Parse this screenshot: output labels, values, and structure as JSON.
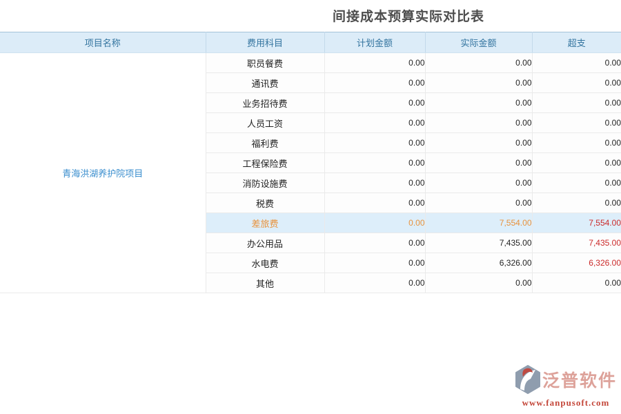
{
  "title": "间接成本预算实际对比表",
  "table": {
    "headers": [
      "项目名称",
      "费用科目",
      "计划金额",
      "实际金额",
      "超支"
    ],
    "project_name": "青海洪湖养护院项目",
    "rows": [
      {
        "subject": "职员餐费",
        "planned": "0.00",
        "actual": "0.00",
        "over": "0.00",
        "highlight": false,
        "over_red": false
      },
      {
        "subject": "通讯费",
        "planned": "0.00",
        "actual": "0.00",
        "over": "0.00",
        "highlight": false,
        "over_red": false
      },
      {
        "subject": "业务招待费",
        "planned": "0.00",
        "actual": "0.00",
        "over": "0.00",
        "highlight": false,
        "over_red": false
      },
      {
        "subject": "人员工资",
        "planned": "0.00",
        "actual": "0.00",
        "over": "0.00",
        "highlight": false,
        "over_red": false
      },
      {
        "subject": "福利费",
        "planned": "0.00",
        "actual": "0.00",
        "over": "0.00",
        "highlight": false,
        "over_red": false
      },
      {
        "subject": "工程保险费",
        "planned": "0.00",
        "actual": "0.00",
        "over": "0.00",
        "highlight": false,
        "over_red": false
      },
      {
        "subject": "消防设施费",
        "planned": "0.00",
        "actual": "0.00",
        "over": "0.00",
        "highlight": false,
        "over_red": false
      },
      {
        "subject": "税费",
        "planned": "0.00",
        "actual": "0.00",
        "over": "0.00",
        "highlight": false,
        "over_red": false
      },
      {
        "subject": "差旅费",
        "planned": "0.00",
        "actual": "7,554.00",
        "over": "7,554.00",
        "highlight": true,
        "over_red": true
      },
      {
        "subject": "办公用品",
        "planned": "0.00",
        "actual": "7,435.00",
        "over": "7,435.00",
        "highlight": false,
        "over_red": true
      },
      {
        "subject": "水电费",
        "planned": "0.00",
        "actual": "6,326.00",
        "over": "6,326.00",
        "highlight": false,
        "over_red": true
      },
      {
        "subject": "其他",
        "planned": "0.00",
        "actual": "0.00",
        "over": "0.00",
        "highlight": false,
        "over_red": false
      }
    ]
  },
  "watermark": {
    "brand": "泛普软件",
    "url": "www.fanpusoft.com"
  },
  "colors": {
    "header_bg": "#dcecf8",
    "header_text": "#33749f",
    "project_link": "#3a8ece",
    "highlight_row_bg": "#ddeefa",
    "highlight_text_orange": "#e8923c",
    "overspend_red": "#cb2a2a",
    "title_text": "#4d4d4d",
    "brand_pink": "#dda29a",
    "brand_red": "#c4473a",
    "logo_gray_blue": "#8f9dae"
  }
}
